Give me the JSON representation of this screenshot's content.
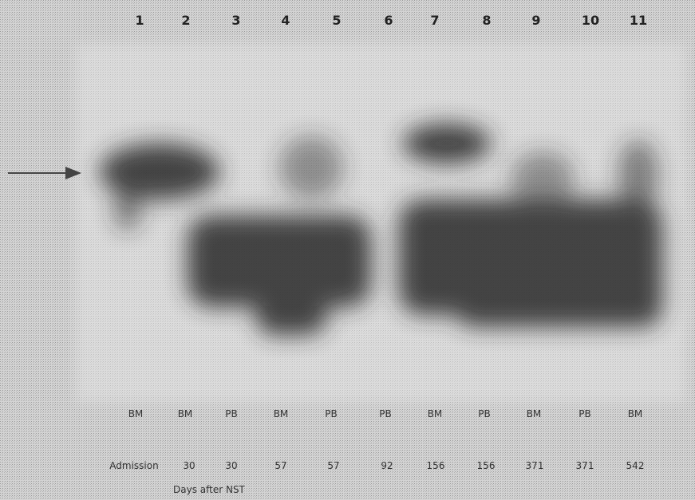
{
  "lanes": [
    {
      "number": "1",
      "sample": "BM",
      "day": "Admission"
    },
    {
      "number": "2",
      "sample": "BM",
      "day": "30"
    },
    {
      "number": "3",
      "sample": "PB",
      "day": "30"
    },
    {
      "number": "4",
      "sample": "BM",
      "day": "57"
    },
    {
      "number": "5",
      "sample": "PB",
      "day": "57"
    },
    {
      "number": "6",
      "sample": "PB",
      "day": "92"
    },
    {
      "number": "7",
      "sample": "BM",
      "day": "156"
    },
    {
      "number": "8",
      "sample": "PB",
      "day": "156"
    },
    {
      "number": "9",
      "sample": "BM",
      "day": "371"
    },
    {
      "number": "10",
      "sample": "PB",
      "day": "371"
    },
    {
      "number": "11",
      "sample": "BM",
      "day": "542"
    }
  ],
  "footer": {
    "caption": "Days after NST"
  }
}
